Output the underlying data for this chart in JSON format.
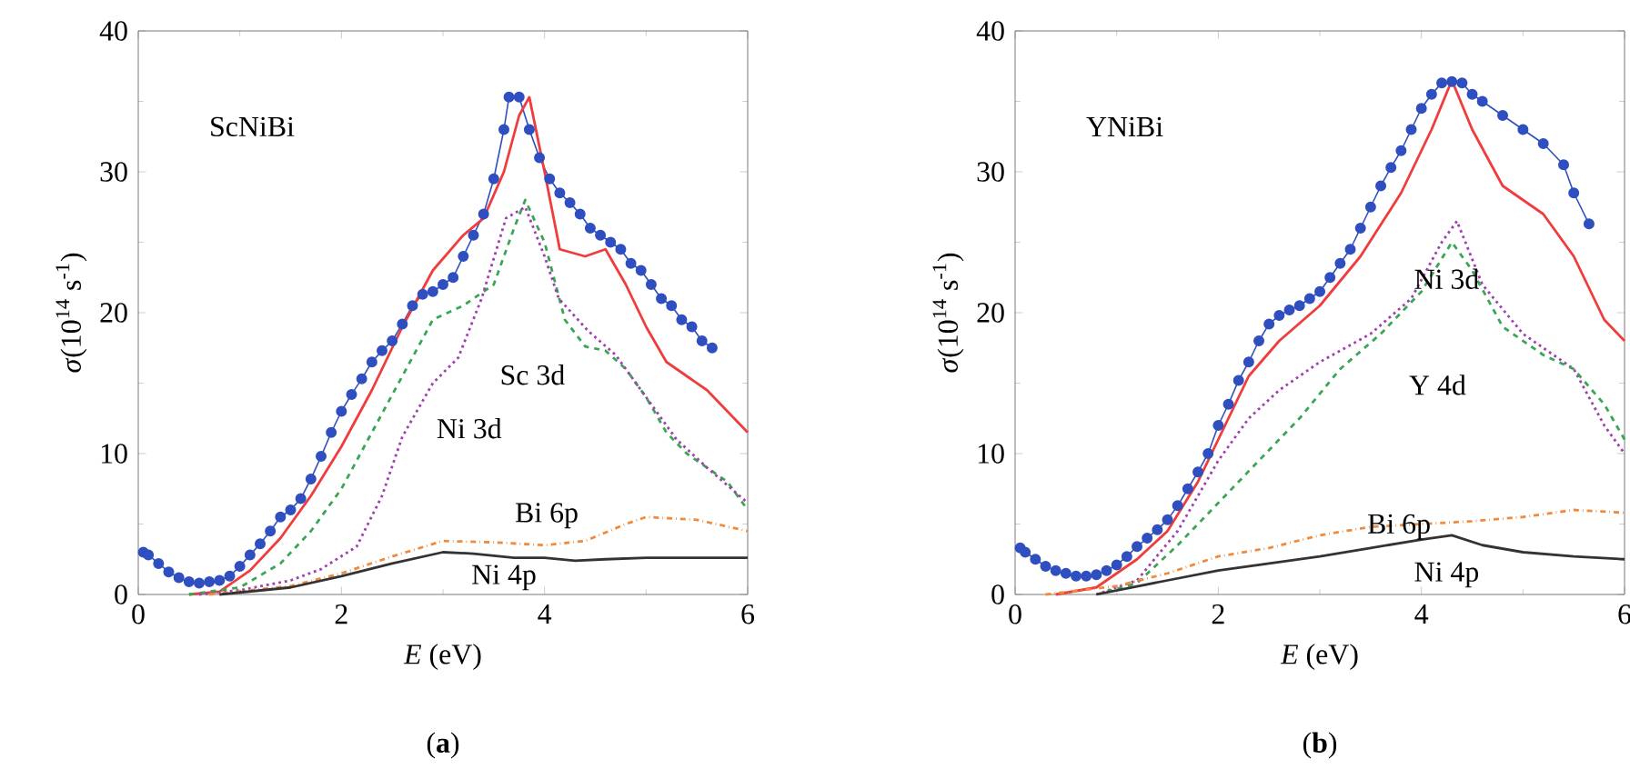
{
  "chart_data": [
    {
      "type": "line",
      "title": "ScNiBi",
      "xlabel": "*E* (eV)",
      "ylabel": "*σ*(10$^{14}$ s$^{-1}$)",
      "xlim": [
        0,
        6
      ],
      "ylim": [
        0,
        40
      ],
      "xticks": [
        0,
        2,
        4,
        6
      ],
      "yticks": [
        0,
        10,
        20,
        30,
        40
      ],
      "series": [
        {
          "color": "#2f4fc0",
          "marker": "circle",
          "line_style": "solid",
          "x": [
            0.05,
            0.1,
            0.2,
            0.3,
            0.4,
            0.5,
            0.6,
            0.7,
            0.8,
            0.9,
            1.0,
            1.1,
            1.2,
            1.3,
            1.4,
            1.5,
            1.6,
            1.7,
            1.8,
            1.9,
            2.0,
            2.1,
            2.2,
            2.3,
            2.4,
            2.5,
            2.6,
            2.7,
            2.8,
            2.9,
            3.0,
            3.1,
            3.2,
            3.3,
            3.4,
            3.5,
            3.6,
            3.65,
            3.75,
            3.85,
            3.95,
            4.05,
            4.15,
            4.25,
            4.35,
            4.45,
            4.55,
            4.65,
            4.75,
            4.85,
            4.95,
            5.05,
            5.15,
            5.25,
            5.35,
            5.45,
            5.55,
            5.65
          ],
          "values": [
            3.0,
            2.8,
            2.2,
            1.6,
            1.2,
            0.9,
            0.8,
            0.9,
            1.0,
            1.3,
            2.0,
            2.8,
            3.6,
            4.5,
            5.5,
            6.0,
            6.8,
            8.2,
            9.8,
            11.5,
            13,
            14.2,
            15.3,
            16.5,
            17.3,
            18,
            19.2,
            20.5,
            21.3,
            21.5,
            22,
            22.5,
            24,
            25.5,
            27,
            29.5,
            33,
            35.3,
            35.3,
            33,
            31,
            29.5,
            28.5,
            27.8,
            27,
            26,
            25.5,
            25,
            24.5,
            23.5,
            23,
            22,
            21,
            20.5,
            19.5,
            19,
            18,
            17.5
          ]
        },
        {
          "color": "#f03c3c",
          "marker": "none",
          "line_style": "solid",
          "x": [
            0.5,
            0.8,
            1.1,
            1.4,
            1.7,
            2.0,
            2.3,
            2.6,
            2.9,
            3.2,
            3.4,
            3.6,
            3.75,
            3.85,
            4.0,
            4.15,
            4.4,
            4.6,
            4.8,
            5.0,
            5.2,
            5.4,
            5.6,
            5.8,
            6.0
          ],
          "values": [
            0,
            0.2,
            1.7,
            4,
            7,
            10.5,
            14.5,
            19,
            23,
            25.5,
            26.7,
            30,
            34,
            35.3,
            30,
            24.5,
            24,
            24.5,
            22,
            19,
            16.5,
            15.5,
            14.5,
            13,
            11.5
          ]
        },
        {
          "color": "#3aa655",
          "marker": "none",
          "line_style": "dashed",
          "x": [
            0.5,
            1.0,
            1.4,
            1.7,
            2.0,
            2.3,
            2.6,
            2.9,
            3.2,
            3.5,
            3.7,
            3.81,
            4.0,
            4.2,
            4.4,
            4.6,
            4.8,
            5.0,
            5.2,
            5.4,
            5.6,
            5.8,
            6.0
          ],
          "values": [
            0,
            0.5,
            2.2,
            4.5,
            7.5,
            11.5,
            15.5,
            19.5,
            20.5,
            22,
            26,
            28,
            25,
            19.5,
            17.6,
            17.3,
            16,
            14,
            11.5,
            10,
            9,
            8,
            6
          ]
        },
        {
          "color": "#a040b0",
          "marker": "none",
          "line_style": "dotted",
          "x": [
            0.6,
            1.0,
            1.5,
            1.8,
            2.15,
            2.4,
            2.6,
            2.9,
            3.15,
            3.38,
            3.62,
            3.81,
            4.0,
            4.14,
            4.43,
            4.7,
            5.0,
            5.3,
            5.6,
            6.0
          ],
          "values": [
            0,
            0.3,
            1,
            1.8,
            3.4,
            7,
            11.2,
            15,
            16.8,
            21,
            26.7,
            27.5,
            24,
            21,
            18.7,
            17,
            14,
            11,
            9,
            6.5
          ]
        },
        {
          "color": "#f08a3c",
          "marker": "none",
          "line_style": "dashdot",
          "x": [
            0.7,
            1.5,
            2.0,
            2.5,
            3.0,
            3.5,
            4.0,
            4.4,
            4.8,
            5.0,
            5.5,
            6.0
          ],
          "values": [
            0,
            0.6,
            1.5,
            2.7,
            3.8,
            3.7,
            3.5,
            3.8,
            5.0,
            5.5,
            5.3,
            4.5
          ]
        },
        {
          "color": "#333333",
          "marker": "none",
          "line_style": "solid",
          "x": [
            0.8,
            1.5,
            2.0,
            2.5,
            3.0,
            3.3,
            3.7,
            4.0,
            4.3,
            4.6,
            5.0,
            6.0
          ],
          "values": [
            0,
            0.5,
            1.3,
            2.2,
            3.0,
            2.9,
            2.6,
            2.6,
            2.4,
            2.5,
            2.6,
            2.6
          ]
        }
      ],
      "annotations": [
        "Sc 3d",
        "Ni 3d",
        "Bi 6p",
        "Ni 4p",
        "(**a**)"
      ]
    },
    {
      "type": "line",
      "title": "YNiBi",
      "xlabel": "*E* (eV)",
      "ylabel": "*σ*(10$^{14}$ s$^{-1}$)",
      "xlim": [
        0,
        6
      ],
      "ylim": [
        0,
        40
      ],
      "xticks": [
        0,
        2,
        4,
        6
      ],
      "yticks": [
        0,
        10,
        20,
        30,
        40
      ],
      "series": [
        {
          "color": "#2f4fc0",
          "marker": "circle",
          "line_style": "solid",
          "x": [
            0.05,
            0.1,
            0.2,
            0.3,
            0.4,
            0.5,
            0.6,
            0.7,
            0.8,
            0.9,
            1.0,
            1.1,
            1.2,
            1.3,
            1.4,
            1.5,
            1.6,
            1.7,
            1.8,
            1.9,
            2.0,
            2.1,
            2.2,
            2.3,
            2.4,
            2.5,
            2.6,
            2.7,
            2.8,
            2.9,
            3.0,
            3.1,
            3.2,
            3.3,
            3.4,
            3.5,
            3.6,
            3.7,
            3.8,
            3.9,
            4.0,
            4.1,
            4.2,
            4.3,
            4.4,
            4.5,
            4.6,
            4.8,
            5.0,
            5.2,
            5.4,
            5.5,
            5.65
          ],
          "values": [
            3.3,
            3.0,
            2.5,
            2.0,
            1.7,
            1.5,
            1.3,
            1.3,
            1.4,
            1.7,
            2.1,
            2.7,
            3.4,
            4,
            4.6,
            5.3,
            6.3,
            7.5,
            8.7,
            10,
            12,
            13.5,
            15.2,
            16.5,
            18,
            19.2,
            19.8,
            20.2,
            20.5,
            21,
            21.5,
            22.5,
            23.5,
            24.5,
            26,
            27.5,
            29,
            30.3,
            31.5,
            33,
            34.5,
            35.5,
            36.3,
            36.4,
            36.3,
            35.5,
            35,
            34,
            33,
            32,
            30.5,
            28.5,
            26.3
          ]
        },
        {
          "color": "#f03c3c",
          "marker": "none",
          "line_style": "solid",
          "x": [
            0.4,
            0.8,
            1.2,
            1.5,
            1.8,
            2.1,
            2.3,
            2.6,
            3.0,
            3.4,
            3.8,
            4.1,
            4.3,
            4.5,
            4.8,
            5.2,
            5.5,
            5.8,
            6.0
          ],
          "values": [
            0,
            0.5,
            2.5,
            4.5,
            8,
            12.5,
            15.5,
            18,
            20.5,
            24,
            28.5,
            33,
            36.5,
            33,
            29,
            27,
            24,
            19.5,
            18
          ]
        },
        {
          "color": "#a040b0",
          "marker": "none",
          "line_style": "dotted",
          "x": [
            0.8,
            1.2,
            1.6,
            2.0,
            2.3,
            2.6,
            3.0,
            3.5,
            3.9,
            4.2,
            4.35,
            4.6,
            5.0,
            5.5,
            5.8,
            6.0
          ],
          "values": [
            0,
            1,
            4.5,
            9.5,
            12.5,
            14.5,
            16.5,
            18.5,
            21,
            25,
            26.5,
            22,
            18.5,
            16,
            12,
            10
          ]
        },
        {
          "color": "#3aa655",
          "marker": "none",
          "line_style": "dashed",
          "x": [
            0.8,
            1.2,
            1.6,
            2.0,
            2.4,
            2.8,
            3.2,
            3.6,
            4.0,
            4.3,
            4.5,
            4.8,
            5.2,
            5.5,
            5.8,
            6.0
          ],
          "values": [
            0,
            0.8,
            3.5,
            6.5,
            9.5,
            12.5,
            16,
            18.5,
            21.5,
            25,
            23,
            19,
            17,
            16,
            13.5,
            11
          ]
        },
        {
          "color": "#f08a3c",
          "marker": "none",
          "line_style": "dashdot",
          "x": [
            0.3,
            1.0,
            1.5,
            2.0,
            2.5,
            3.0,
            3.5,
            4.0,
            4.5,
            5.0,
            5.5,
            6.0
          ],
          "values": [
            0,
            0.6,
            1.5,
            2.7,
            3.3,
            4.2,
            4.8,
            5.0,
            5.2,
            5.5,
            6.0,
            5.8
          ]
        },
        {
          "color": "#333333",
          "marker": "none",
          "line_style": "solid",
          "x": [
            0.8,
            1.5,
            2.0,
            2.5,
            3.0,
            3.5,
            4.0,
            4.3,
            4.6,
            5.0,
            5.5,
            6.0
          ],
          "values": [
            0,
            1.0,
            1.7,
            2.2,
            2.7,
            3.3,
            3.9,
            4.2,
            3.5,
            3.0,
            2.7,
            2.5
          ]
        }
      ],
      "annotations": [
        "Ni 3d",
        "Y 4d",
        "Bi 6p",
        "Ni 4p",
        "(**b**)"
      ]
    }
  ]
}
